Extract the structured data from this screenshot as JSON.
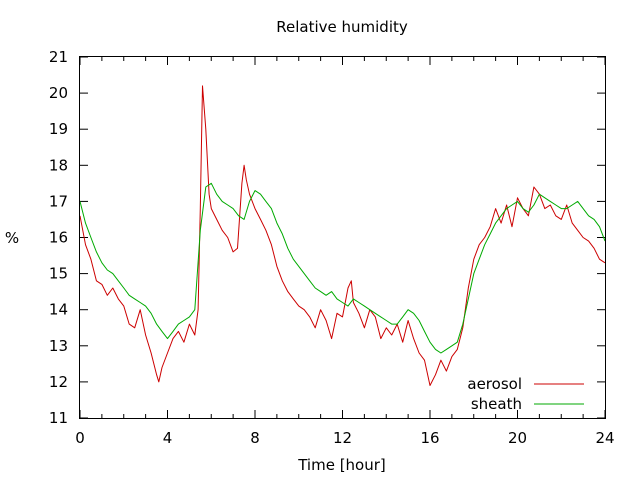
{
  "chart_data": {
    "type": "line",
    "title": "Relative humidity",
    "xlabel": "Time [hour]",
    "ylabel": "%",
    "xlim": [
      0,
      24
    ],
    "ylim": [
      11,
      21
    ],
    "xticks": [
      0,
      4,
      8,
      12,
      16,
      20,
      24
    ],
    "yticks": [
      11,
      12,
      13,
      14,
      15,
      16,
      17,
      18,
      19,
      20,
      21
    ],
    "legend_position": "bottom-right",
    "grid": false,
    "series": [
      {
        "name": "aerosol",
        "color": "#cc0000",
        "x": [
          0,
          0.25,
          0.5,
          0.75,
          1,
          1.25,
          1.5,
          1.75,
          2,
          2.25,
          2.5,
          2.75,
          3,
          3.25,
          3.5,
          3.6,
          3.75,
          4,
          4.25,
          4.5,
          4.75,
          5,
          5.25,
          5.4,
          5.5,
          5.6,
          5.75,
          5.9,
          6,
          6.25,
          6.5,
          6.75,
          7,
          7.2,
          7.4,
          7.5,
          7.6,
          7.75,
          8,
          8.25,
          8.5,
          8.75,
          9,
          9.25,
          9.5,
          9.75,
          10,
          10.25,
          10.5,
          10.75,
          11,
          11.25,
          11.5,
          11.75,
          12,
          12.25,
          12.4,
          12.5,
          12.75,
          13,
          13.25,
          13.5,
          13.75,
          14,
          14.25,
          14.5,
          14.75,
          15,
          15.25,
          15.5,
          15.75,
          16,
          16.25,
          16.5,
          16.75,
          17,
          17.25,
          17.5,
          17.75,
          18,
          18.25,
          18.5,
          18.75,
          19,
          19.25,
          19.5,
          19.75,
          20,
          20.25,
          20.5,
          20.75,
          21,
          21.25,
          21.5,
          21.75,
          22,
          22.25,
          22.5,
          22.75,
          23,
          23.25,
          23.5,
          23.75,
          24
        ],
        "y": [
          16.6,
          15.8,
          15.4,
          14.8,
          14.7,
          14.4,
          14.6,
          14.3,
          14.1,
          13.6,
          13.5,
          14.0,
          13.3,
          12.8,
          12.2,
          12.0,
          12.4,
          12.8,
          13.2,
          13.4,
          13.1,
          13.6,
          13.3,
          14.0,
          16.8,
          20.2,
          19.0,
          17.2,
          16.8,
          16.5,
          16.2,
          16.0,
          15.6,
          15.7,
          17.5,
          18.0,
          17.6,
          17.2,
          16.8,
          16.5,
          16.2,
          15.8,
          15.2,
          14.8,
          14.5,
          14.3,
          14.1,
          14.0,
          13.8,
          13.5,
          14.0,
          13.7,
          13.2,
          13.9,
          13.8,
          14.6,
          14.8,
          14.2,
          13.9,
          13.5,
          14.0,
          13.8,
          13.2,
          13.5,
          13.3,
          13.6,
          13.1,
          13.7,
          13.2,
          12.8,
          12.6,
          11.9,
          12.2,
          12.6,
          12.3,
          12.7,
          12.9,
          13.5,
          14.6,
          15.4,
          15.8,
          16.0,
          16.3,
          16.8,
          16.4,
          16.9,
          16.3,
          17.1,
          16.8,
          16.6,
          17.4,
          17.2,
          16.8,
          16.9,
          16.6,
          16.5,
          16.9,
          16.4,
          16.2,
          16.0,
          15.9,
          15.7,
          15.4,
          15.3
        ]
      },
      {
        "name": "sheath",
        "color": "#00aa00",
        "x": [
          0,
          0.25,
          0.5,
          0.75,
          1,
          1.25,
          1.5,
          1.75,
          2,
          2.25,
          2.5,
          2.75,
          3,
          3.25,
          3.5,
          3.75,
          4,
          4.25,
          4.5,
          4.75,
          5,
          5.25,
          5.5,
          5.75,
          6,
          6.25,
          6.5,
          6.75,
          7,
          7.25,
          7.5,
          7.75,
          8,
          8.25,
          8.5,
          8.75,
          9,
          9.25,
          9.5,
          9.75,
          10,
          10.25,
          10.5,
          10.75,
          11,
          11.25,
          11.5,
          11.75,
          12,
          12.25,
          12.5,
          12.75,
          13,
          13.25,
          13.5,
          13.75,
          14,
          14.25,
          14.5,
          14.75,
          15,
          15.25,
          15.5,
          15.75,
          16,
          16.25,
          16.5,
          16.75,
          17,
          17.25,
          17.5,
          17.75,
          18,
          18.25,
          18.5,
          18.75,
          19,
          19.25,
          19.5,
          19.75,
          20,
          20.25,
          20.5,
          20.75,
          21,
          21.25,
          21.5,
          21.75,
          22,
          22.25,
          22.5,
          22.75,
          23,
          23.25,
          23.5,
          23.75,
          24
        ],
        "y": [
          17.0,
          16.4,
          16.0,
          15.6,
          15.3,
          15.1,
          15.0,
          14.8,
          14.6,
          14.4,
          14.3,
          14.2,
          14.1,
          13.9,
          13.6,
          13.4,
          13.2,
          13.4,
          13.6,
          13.7,
          13.8,
          14.0,
          16.2,
          17.4,
          17.5,
          17.2,
          17.0,
          16.9,
          16.8,
          16.6,
          16.5,
          17.0,
          17.3,
          17.2,
          17.0,
          16.8,
          16.4,
          16.1,
          15.7,
          15.4,
          15.2,
          15.0,
          14.8,
          14.6,
          14.5,
          14.4,
          14.5,
          14.3,
          14.2,
          14.1,
          14.3,
          14.2,
          14.1,
          14.0,
          13.9,
          13.8,
          13.7,
          13.6,
          13.6,
          13.8,
          14.0,
          13.9,
          13.7,
          13.4,
          13.1,
          12.9,
          12.8,
          12.9,
          13.0,
          13.1,
          13.6,
          14.3,
          15.0,
          15.4,
          15.8,
          16.1,
          16.4,
          16.6,
          16.8,
          16.9,
          17.0,
          16.8,
          16.7,
          16.9,
          17.2,
          17.1,
          17.0,
          16.9,
          16.8,
          16.8,
          16.9,
          17.0,
          16.8,
          16.6,
          16.5,
          16.3,
          15.9
        ]
      }
    ]
  }
}
